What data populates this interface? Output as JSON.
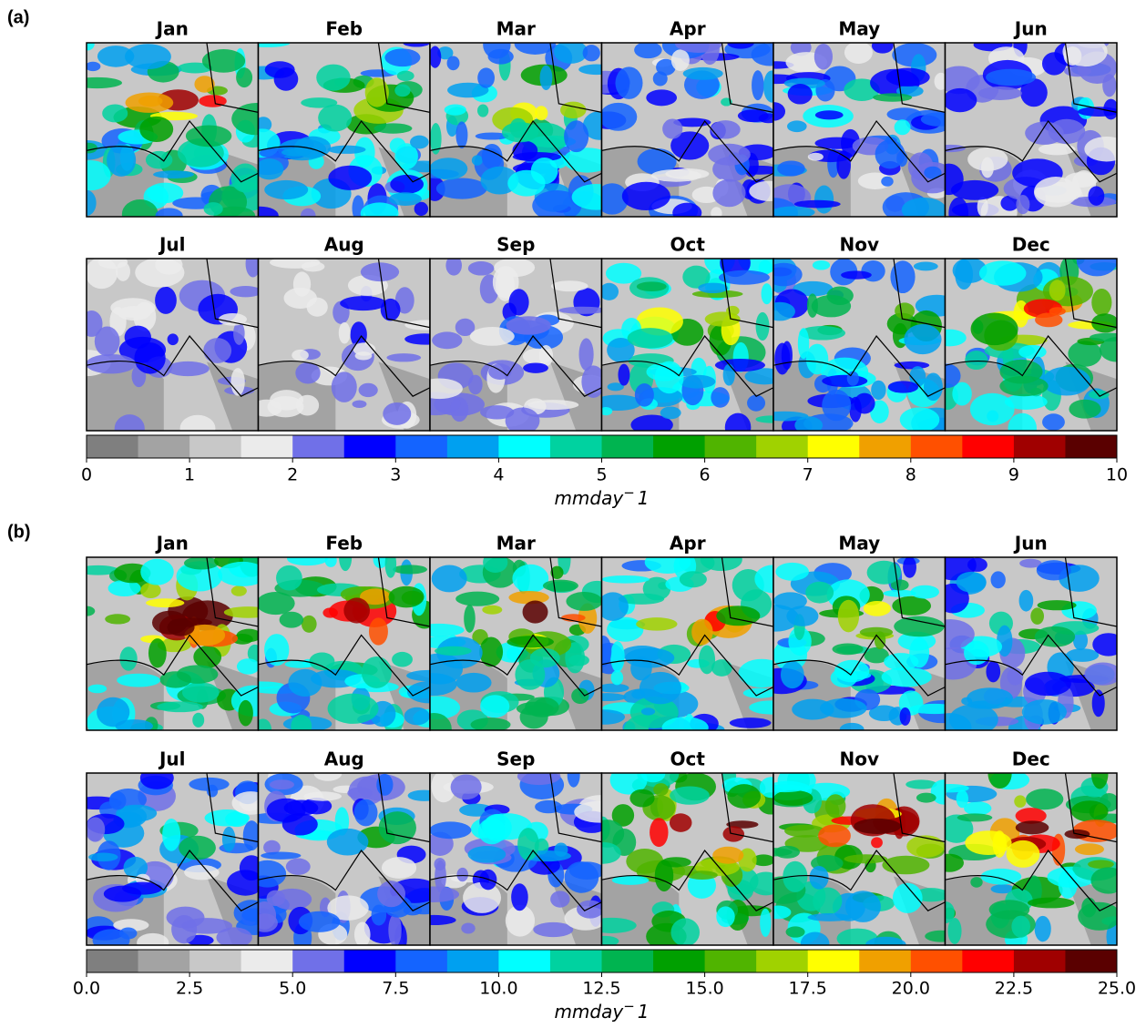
{
  "panels": [
    {
      "tag": "(a)",
      "months": [
        "Jan",
        "Feb",
        "Mar",
        "Apr",
        "May",
        "Jun",
        "Jul",
        "Aug",
        "Sep",
        "Oct",
        "Nov",
        "Dec"
      ],
      "colorbar": {
        "range": [
          0,
          10
        ],
        "ticks": [
          0,
          1,
          2,
          3,
          4,
          5,
          6,
          7,
          8,
          9,
          10
        ],
        "colors": [
          "#7f7f7f",
          "#a3a3a3",
          "#c8c8c8",
          "#ebebeb",
          "#7070e8",
          "#0000ff",
          "#1464ff",
          "#00a0f0",
          "#00ffff",
          "#00d2a0",
          "#00b450",
          "#00a000",
          "#50b400",
          "#a0d200",
          "#ffff00",
          "#f0a000",
          "#ff5000",
          "#ff0000",
          "#a00000",
          "#5a0000"
        ],
        "unit": {
          "text": "mmday",
          "sup": "−",
          "after": "1"
        }
      }
    },
    {
      "tag": "(b)",
      "months": [
        "Jan",
        "Feb",
        "Mar",
        "Apr",
        "May",
        "Jun",
        "Jul",
        "Aug",
        "Sep",
        "Oct",
        "Nov",
        "Dec"
      ],
      "colorbar": {
        "range": [
          0,
          25
        ],
        "ticks": [
          {
            "value": 0,
            "label": "0.0"
          },
          {
            "value": 2.5,
            "label": "2.5"
          },
          {
            "value": 5,
            "label": "5.0"
          },
          {
            "value": 7.5,
            "label": "7.5"
          },
          {
            "value": 10,
            "label": "10.0"
          },
          {
            "value": 12.5,
            "label": "12.5"
          },
          {
            "value": 15,
            "label": "15.0"
          },
          {
            "value": 17.5,
            "label": "17.5"
          },
          {
            "value": 20,
            "label": "20.0"
          },
          {
            "value": 22.5,
            "label": "22.5"
          },
          {
            "value": 25,
            "label": "25.0"
          }
        ],
        "colors": [
          "#7f7f7f",
          "#a3a3a3",
          "#c8c8c8",
          "#ebebeb",
          "#7070e8",
          "#0000ff",
          "#1464ff",
          "#00a0f0",
          "#00ffff",
          "#00d2a0",
          "#00b450",
          "#00a000",
          "#50b400",
          "#a0d200",
          "#ffff00",
          "#f0a000",
          "#ff5000",
          "#ff0000",
          "#a00000",
          "#5a0000"
        ],
        "unit": {
          "text": "mmday",
          "sup": "−",
          "after": "1"
        }
      }
    }
  ]
}
